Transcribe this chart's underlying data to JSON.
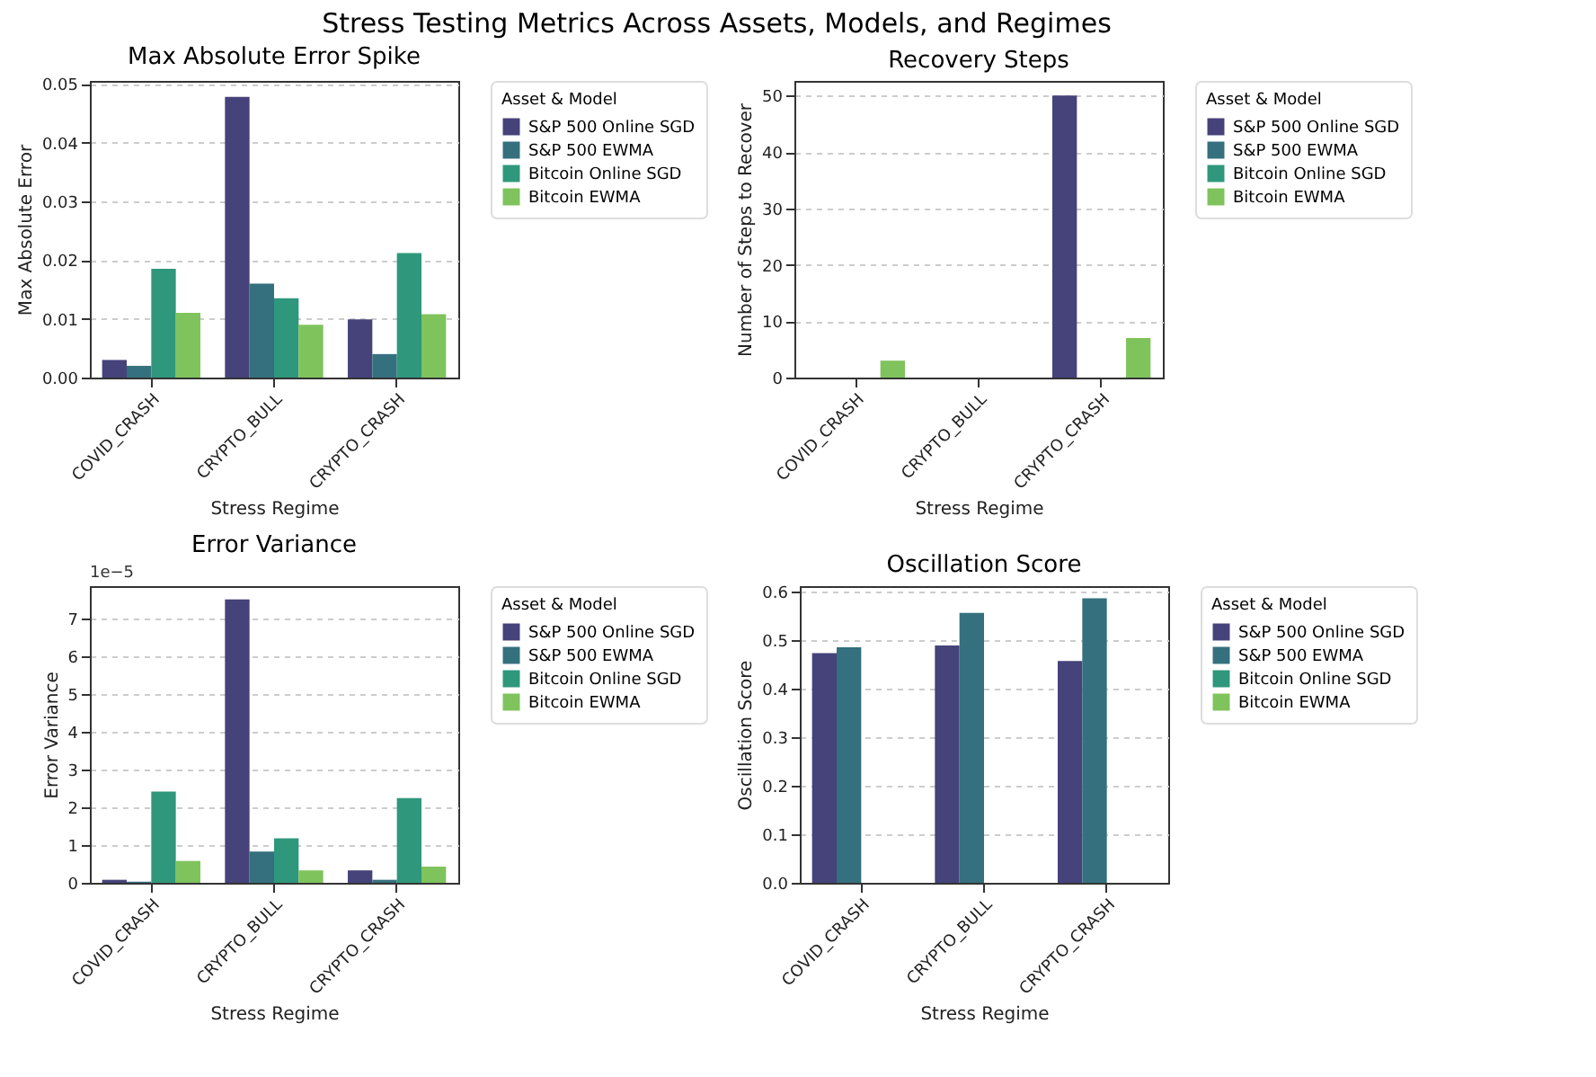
{
  "chart_data": [
    {
      "type": "bar",
      "title": "Max Absolute Error Spike",
      "xlabel": "Stress Regime",
      "ylabel": "Max Absolute Error",
      "legend_title": "Asset & Model",
      "annotations": [
        "Stress Testing Metrics Across Assets, Models, and Regimes"
      ],
      "categories": [
        "COVID_CRASH",
        "CRYPTO_BULL",
        "CRYPTO_CRASH"
      ],
      "series": [
        {
          "name": "S&P 500 Online SGD",
          "color": "#46427a",
          "values": [
            0.003,
            0.0478,
            0.0099
          ]
        },
        {
          "name": "S&P 500 EWMA",
          "color": "#35707e",
          "values": [
            0.002,
            0.016,
            0.004
          ]
        },
        {
          "name": "Bitcoin Online SGD",
          "color": "#2f977b",
          "values": [
            0.0185,
            0.0135,
            0.0212
          ]
        },
        {
          "name": "Bitcoin EWMA",
          "color": "#7fc35c",
          "values": [
            0.011,
            0.009,
            0.0108
          ]
        }
      ],
      "ylim": [
        0,
        0.0505
      ],
      "yticks": [
        {
          "value": 0,
          "label": "0.00"
        },
        {
          "value": 0.01,
          "label": "0.01"
        },
        {
          "value": 0.02,
          "label": "0.02"
        },
        {
          "value": 0.03,
          "label": "0.03"
        },
        {
          "value": 0.04,
          "label": "0.04"
        },
        {
          "value": 0.05,
          "label": "0.05"
        }
      ],
      "grid": "y",
      "legend": "right"
    },
    {
      "type": "bar",
      "title": "Recovery Steps",
      "xlabel": "Stress Regime",
      "ylabel": "Number of Steps to Recover",
      "legend_title": "Asset & Model",
      "categories": [
        "COVID_CRASH",
        "CRYPTO_BULL",
        "CRYPTO_CRASH"
      ],
      "series": [
        {
          "name": "S&P 500 Online SGD",
          "color": "#46427a",
          "values": [
            0,
            0,
            50
          ]
        },
        {
          "name": "S&P 500 EWMA",
          "color": "#35707e",
          "values": [
            0,
            0,
            0
          ]
        },
        {
          "name": "Bitcoin Online SGD",
          "color": "#2f977b",
          "values": [
            0,
            0,
            0
          ]
        },
        {
          "name": "Bitcoin EWMA",
          "color": "#7fc35c",
          "values": [
            3,
            0,
            7
          ]
        }
      ],
      "ylim": [
        0,
        52.6
      ],
      "yticks": [
        0,
        10,
        20,
        30,
        40,
        50
      ],
      "grid": "y",
      "legend": "right"
    },
    {
      "type": "bar",
      "title": "Error Variance",
      "xlabel": "Stress Regime",
      "ylabel": "Error Variance",
      "legend_title": "Asset & Model",
      "annotations": [
        "1e−5"
      ],
      "categories": [
        "COVID_CRASH",
        "CRYPTO_BULL",
        "CRYPTO_CRASH"
      ],
      "series": [
        {
          "name": "S&P 500 Online SGD",
          "color": "#46427a",
          "values": [
            0.08,
            7.52,
            0.33
          ]
        },
        {
          "name": "S&P 500 EWMA",
          "color": "#35707e",
          "values": [
            0.03,
            0.83,
            0.08
          ]
        },
        {
          "name": "Bitcoin Online SGD",
          "color": "#2f977b",
          "values": [
            2.42,
            1.18,
            2.25
          ]
        },
        {
          "name": "Bitcoin EWMA",
          "color": "#7fc35c",
          "values": [
            0.58,
            0.33,
            0.43
          ]
        }
      ],
      "ylim": [
        0,
        7.87
      ],
      "yticks": [
        0,
        1,
        2,
        3,
        4,
        5,
        6,
        7
      ],
      "grid": "y",
      "legend": "right"
    },
    {
      "type": "bar",
      "title": "Oscillation Score",
      "xlabel": "Stress Regime",
      "ylabel": "Oscillation Score",
      "legend_title": "Asset & Model",
      "categories": [
        "COVID_CRASH",
        "CRYPTO_BULL",
        "CRYPTO_CRASH"
      ],
      "series": [
        {
          "name": "S&P 500 Online SGD",
          "color": "#46427a",
          "values": [
            0.473,
            0.489,
            0.457
          ]
        },
        {
          "name": "S&P 500 EWMA",
          "color": "#35707e",
          "values": [
            0.485,
            0.556,
            0.586
          ]
        },
        {
          "name": "Bitcoin Online SGD",
          "color": "#2f977b",
          "values": [
            0,
            0,
            0
          ]
        },
        {
          "name": "Bitcoin EWMA",
          "color": "#7fc35c",
          "values": [
            0,
            0,
            0
          ]
        }
      ],
      "ylim": [
        0,
        0.611
      ],
      "yticks": [
        {
          "value": 0,
          "label": "0.0"
        },
        {
          "value": 0.1,
          "label": "0.1"
        },
        {
          "value": 0.2,
          "label": "0.2"
        },
        {
          "value": 0.3,
          "label": "0.3"
        },
        {
          "value": 0.4,
          "label": "0.4"
        },
        {
          "value": 0.5,
          "label": "0.5"
        },
        {
          "value": 0.6,
          "label": "0.6"
        }
      ],
      "grid": "y",
      "legend": "right"
    }
  ]
}
